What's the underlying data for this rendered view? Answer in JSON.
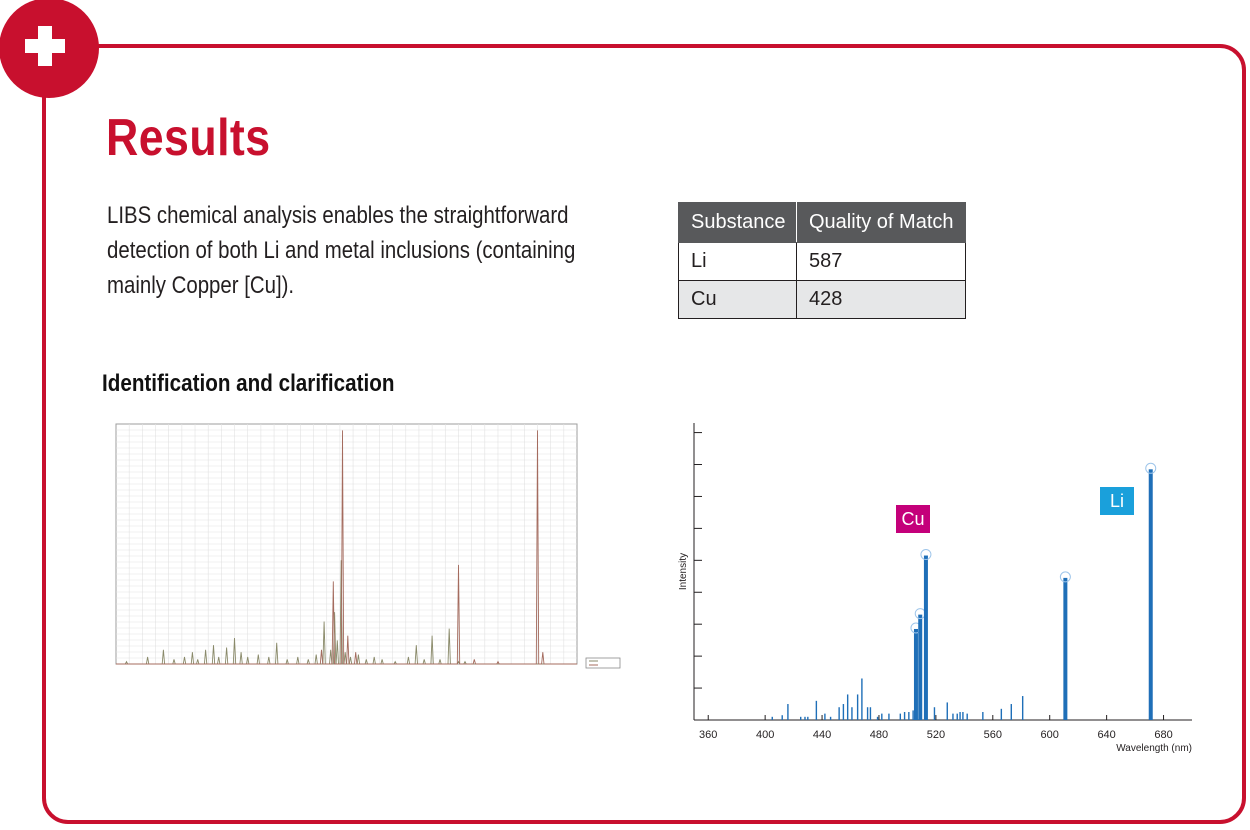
{
  "header": {
    "title": "Results"
  },
  "intro": {
    "text": "LIBS chemical analysis enables the straightforward detection of both Li and metal inclusions (containing mainly Copper [Cu])."
  },
  "match_table": {
    "headers": [
      "Substance",
      "Quality of Match"
    ],
    "rows": [
      {
        "substance": "Li",
        "quality": "587"
      },
      {
        "substance": "Cu",
        "quality": "428"
      }
    ]
  },
  "section": {
    "heading": "Identification and clarification"
  },
  "colors": {
    "brand_red": "#c8102e",
    "bar_blue": "#1f6fb8",
    "cu_label": "#c4007a",
    "li_label": "#1aa0db"
  },
  "chart_data": [
    {
      "type": "line",
      "title": "",
      "series": [
        {
          "peaks": [
            [
              358,
              0.01
            ],
            [
              374,
              0.03
            ],
            [
              386,
              0.06
            ],
            [
              394,
              0.02
            ],
            [
              402,
              0.03
            ],
            [
              408,
              0.05
            ],
            [
              412,
              0.02
            ],
            [
              418,
              0.06
            ],
            [
              424,
              0.08
            ],
            [
              428,
              0.03
            ],
            [
              434,
              0.07
            ],
            [
              440,
              0.11
            ],
            [
              445,
              0.05
            ],
            [
              450,
              0.03
            ],
            [
              458,
              0.04
            ],
            [
              466,
              0.03
            ],
            [
              472,
              0.09
            ],
            [
              480,
              0.02
            ],
            [
              488,
              0.03
            ],
            [
              496,
              0.02
            ],
            [
              502,
              0.04
            ],
            [
              508,
              0.18
            ],
            [
              513,
              0.06
            ],
            [
              516,
              0.22
            ],
            [
              518,
              0.1
            ],
            [
              521,
              0.44
            ],
            [
              524,
              0.05
            ],
            [
              528,
              0.03
            ],
            [
              534,
              0.04
            ],
            [
              540,
              0.02
            ],
            [
              546,
              0.03
            ],
            [
              552,
              0.02
            ],
            [
              562,
              0.01
            ],
            [
              572,
              0.03
            ],
            [
              578,
              0.08
            ],
            [
              584,
              0.02
            ],
            [
              590,
              0.12
            ],
            [
              596,
              0.02
            ],
            [
              603,
              0.15
            ],
            [
              610,
              0.01
            ],
            [
              615,
              0.01
            ]
          ]
        },
        {
          "peaks": [
            [
              506,
              0.06
            ],
            [
              515,
              0.35
            ],
            [
              522,
              0.99
            ],
            [
              526,
              0.12
            ],
            [
              532,
              0.05
            ],
            [
              610,
              0.42
            ],
            [
              622,
              0.02
            ],
            [
              640,
              0.01
            ],
            [
              670,
              0.99
            ],
            [
              674,
              0.05
            ]
          ]
        }
      ]
    },
    {
      "type": "bar",
      "xlabel": "Wavelength (nm)",
      "ylabel": "Intensity",
      "xlim": [
        350,
        700
      ],
      "ylim": [
        0,
        9.3
      ],
      "xticks": [
        360,
        400,
        440,
        480,
        520,
        560,
        600,
        640,
        680
      ],
      "legend": [
        "Cu",
        "Li"
      ],
      "x": [
        405,
        412,
        416,
        425,
        428,
        430,
        436,
        442,
        446,
        452,
        455,
        458,
        461,
        465,
        468,
        472,
        474,
        479,
        482,
        487,
        495,
        498,
        501,
        504,
        506,
        509,
        513,
        519,
        528,
        532,
        535,
        537,
        539,
        542,
        553,
        566,
        573,
        581,
        611,
        671
      ],
      "y": [
        0.1,
        0.15,
        0.5,
        0.1,
        0.1,
        0.1,
        0.6,
        0.2,
        0.1,
        0.4,
        0.5,
        0.8,
        0.4,
        0.8,
        1.3,
        0.4,
        0.4,
        0.1,
        0.2,
        0.2,
        0.2,
        0.25,
        0.25,
        0.3,
        2.85,
        3.3,
        5.15,
        0.4,
        0.55,
        0.2,
        0.2,
        0.25,
        0.25,
        0.2,
        0.25,
        0.35,
        0.5,
        0.75,
        4.45,
        7.85
      ]
    }
  ]
}
